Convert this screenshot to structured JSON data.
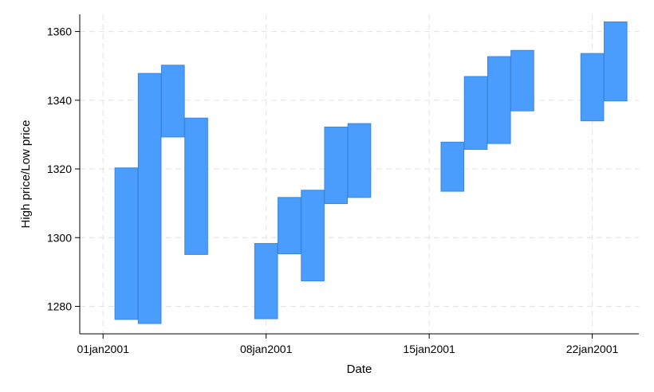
{
  "chart_data": {
    "type": "bar",
    "subtype": "range",
    "xlabel": "Date",
    "ylabel": "High price/Low price",
    "xlim": [
      "2000-12-31",
      "2001-01-24"
    ],
    "ylim": [
      1272,
      1365
    ],
    "yticks": [
      1280,
      1300,
      1320,
      1340,
      1360
    ],
    "xticks": [
      {
        "date": "2001-01-01",
        "label": "01jan2001"
      },
      {
        "date": "2001-01-08",
        "label": "08jan2001"
      },
      {
        "date": "2001-01-15",
        "label": "15jan2001"
      },
      {
        "date": "2001-01-22",
        "label": "22jan2001"
      }
    ],
    "grid": true,
    "bar_color": "#4a9dfc",
    "bar_edge_color": "#3a86e0",
    "series": [
      {
        "fields": [
          "date",
          "low",
          "high"
        ],
        "values": [
          [
            "2001-01-02",
            1276.2,
            1320.3
          ],
          [
            "2001-01-03",
            1275.0,
            1347.8
          ],
          [
            "2001-01-04",
            1329.3,
            1350.2
          ],
          [
            "2001-01-05",
            1295.1,
            1334.8
          ],
          [
            "2001-01-08",
            1276.4,
            1298.3
          ],
          [
            "2001-01-09",
            1295.3,
            1311.7
          ],
          [
            "2001-01-10",
            1287.4,
            1313.8
          ],
          [
            "2001-01-11",
            1309.9,
            1332.2
          ],
          [
            "2001-01-12",
            1311.7,
            1333.2
          ],
          [
            "2001-01-16",
            1313.5,
            1327.8
          ],
          [
            "2001-01-17",
            1325.7,
            1346.9
          ],
          [
            "2001-01-18",
            1327.4,
            1352.7
          ],
          [
            "2001-01-19",
            1336.9,
            1354.5
          ],
          [
            "2001-01-22",
            1334.0,
            1353.6
          ],
          [
            "2001-01-23",
            1339.8,
            1362.8
          ]
        ]
      }
    ]
  }
}
